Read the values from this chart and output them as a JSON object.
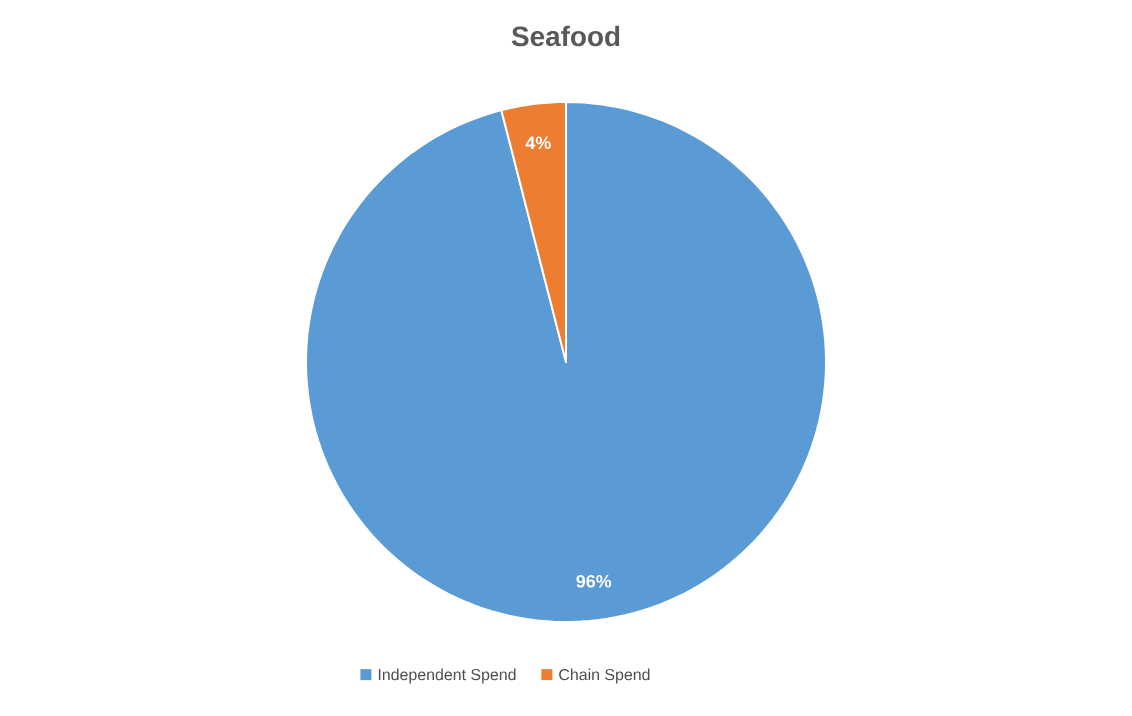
{
  "chart_data": {
    "type": "pie",
    "title": "Seafood",
    "categories": [
      "Independent Spend",
      "Chain Spend"
    ],
    "values": [
      96,
      4
    ],
    "colors": [
      "#5b9bd5",
      "#ed7d31"
    ],
    "value_labels": [
      "96%",
      "4%"
    ],
    "legend": "bottom"
  }
}
